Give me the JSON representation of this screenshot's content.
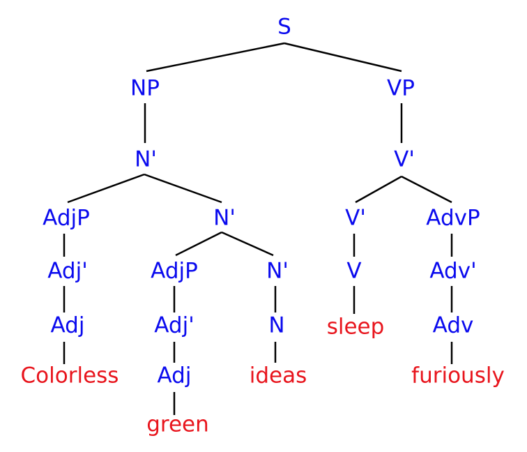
{
  "nodes": [
    {
      "label": "S"
    },
    {
      "label": "NP"
    },
    {
      "label": "VP"
    },
    {
      "label": "N'"
    },
    {
      "label": "V'"
    },
    {
      "label": "AdjP"
    },
    {
      "label": "N'"
    },
    {
      "label": "V'"
    },
    {
      "label": "AdvP"
    },
    {
      "label": "Adj'"
    },
    {
      "label": "AdjP"
    },
    {
      "label": "N'"
    },
    {
      "label": "V"
    },
    {
      "label": "Adv'"
    },
    {
      "label": "Adj"
    },
    {
      "label": "Adj'"
    },
    {
      "label": "N"
    },
    {
      "label": "sleep"
    },
    {
      "label": "Adv"
    },
    {
      "label": "Colorless"
    },
    {
      "label": "Adj"
    },
    {
      "label": "ideas"
    },
    {
      "label": "furiously"
    },
    {
      "label": "green"
    }
  ]
}
